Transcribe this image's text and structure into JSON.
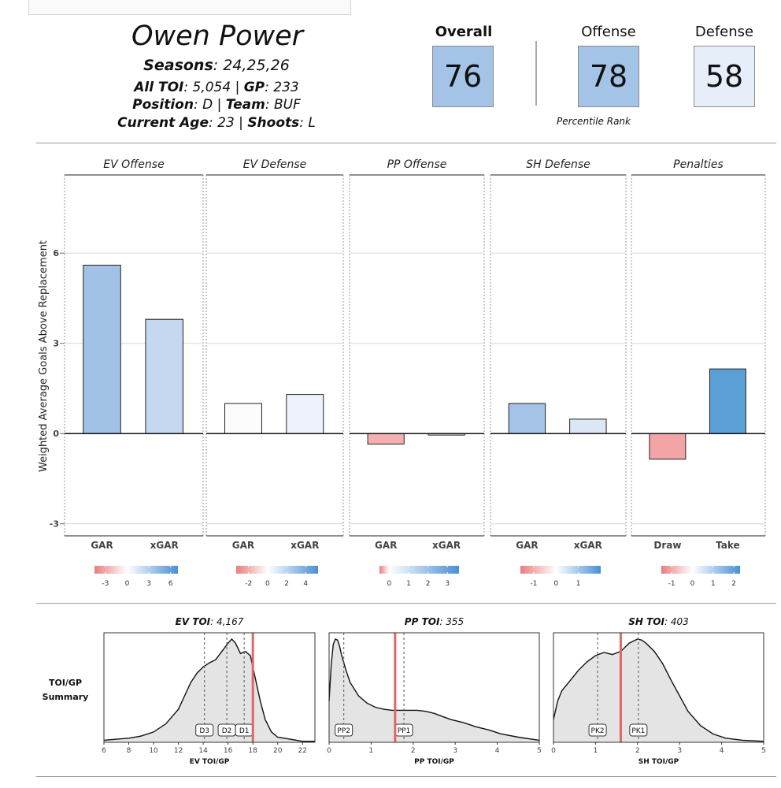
{
  "player": {
    "name": "Owen Power",
    "seasons_label": "Seasons",
    "seasons_value": ": 24,25,26",
    "toi_label": "All TOI",
    "toi_value": ": 5,054 | ",
    "gp_label": "GP",
    "gp_value": ": 233",
    "position_label": "Position",
    "position_value": ": D | ",
    "team_label": "Team",
    "team_value": ": BUF",
    "age_label": "Current Age",
    "age_value": ": 23 | ",
    "shoots_label": "Shoots",
    "shoots_value": ": L"
  },
  "ranks": {
    "overall_label": "Overall",
    "overall_value": "76",
    "offense_label": "Offense",
    "offense_value": "78",
    "defense_label": "Defense",
    "defense_value": "58",
    "caption": "Percentile Rank",
    "colors": {
      "overall": "#a3c4e6",
      "offense": "#a3c4e6",
      "defense": "#e6eefa"
    }
  },
  "toi_side_label": [
    "TOI/GP",
    "Summary"
  ],
  "chart_data": [
    {
      "type": "bar",
      "ylabel": "Weighted Average Goals Above Replacement",
      "ylim": [
        -3.4,
        8.6
      ],
      "yticks": [
        -3,
        0,
        3,
        6
      ],
      "panels": [
        {
          "title": "EV Offense",
          "categories": [
            "GAR",
            "xGAR"
          ],
          "values": [
            5.6,
            3.8
          ],
          "colors": [
            "#a1c1e6",
            "#c5d8f0"
          ],
          "legend_ticks": [
            -3,
            0,
            3,
            6
          ],
          "legend_range": [
            -4.5,
            7
          ]
        },
        {
          "title": "EV Defense",
          "categories": [
            "GAR",
            "xGAR"
          ],
          "values": [
            1.0,
            1.3
          ],
          "colors": [
            "#fcfcfd",
            "#eef3fb"
          ],
          "legend_ticks": [
            -2,
            0,
            2,
            4
          ],
          "legend_range": [
            -3.3,
            5.3
          ]
        },
        {
          "title": "PP Offense",
          "categories": [
            "GAR",
            "xGAR"
          ],
          "values": [
            -0.35,
            -0.05
          ],
          "colors": [
            "#f6b0b0",
            "#f8eeee"
          ],
          "legend_ticks": [
            0,
            1,
            2,
            3
          ],
          "legend_range": [
            -0.5,
            3.6
          ]
        },
        {
          "title": "SH Defense",
          "categories": [
            "GAR",
            "xGAR"
          ],
          "values": [
            1.0,
            0.48
          ],
          "colors": [
            "#a4c3e6",
            "#dce7f6"
          ],
          "legend_ticks": [
            -1,
            0,
            1
          ],
          "legend_range": [
            -1.6,
            2.0
          ]
        },
        {
          "title": "Penalties",
          "categories": [
            "Draw",
            "Take"
          ],
          "values": [
            -0.85,
            2.15
          ],
          "colors": [
            "#f3a5a5",
            "#5a9fd6"
          ],
          "legend_ticks": [
            -1,
            0,
            1,
            2
          ],
          "legend_range": [
            -1.5,
            2.3
          ]
        }
      ]
    },
    {
      "type": "area",
      "title_label": "EV TOI",
      "title_value": ": 4,167",
      "xlabel": "EV TOI/GP",
      "xlim": [
        6,
        23
      ],
      "xticks": [
        6,
        8,
        10,
        12,
        14,
        16,
        18,
        20,
        22
      ],
      "curve_x": [
        6,
        7,
        8,
        9,
        10,
        11,
        12,
        12.5,
        13,
        13.5,
        14,
        14.5,
        15,
        15.5,
        16,
        16.3,
        16.6,
        17,
        17.4,
        17.8,
        18.2,
        18.6,
        19,
        19.5,
        20,
        21,
        22,
        23
      ],
      "curve_y": [
        0.02,
        0.03,
        0.04,
        0.06,
        0.1,
        0.18,
        0.32,
        0.45,
        0.58,
        0.67,
        0.73,
        0.77,
        0.8,
        0.88,
        0.96,
        1.0,
        0.96,
        0.86,
        0.88,
        0.84,
        0.62,
        0.4,
        0.22,
        0.1,
        0.05,
        0.03,
        0.01,
        0.01
      ],
      "markers": [
        {
          "label": "D3",
          "x": 14.1
        },
        {
          "label": "D2",
          "x": 15.9
        },
        {
          "label": "D1",
          "x": 17.3
        }
      ],
      "player_value": 18.0
    },
    {
      "type": "area",
      "title_label": "PP TOI",
      "title_value": ": 355",
      "xlabel": "PP TOI/GP",
      "xlim": [
        0,
        5
      ],
      "xticks": [
        0,
        1,
        2,
        3,
        4,
        5
      ],
      "curve_x": [
        0,
        0.05,
        0.1,
        0.15,
        0.2,
        0.25,
        0.3,
        0.4,
        0.5,
        0.7,
        0.9,
        1.1,
        1.3,
        1.5,
        1.7,
        1.9,
        2.1,
        2.3,
        2.5,
        2.7,
        2.9,
        3.2,
        3.5,
        3.8,
        4.1,
        4.5,
        5
      ],
      "curve_y": [
        0.4,
        0.75,
        0.95,
        1.0,
        0.99,
        0.93,
        0.84,
        0.7,
        0.58,
        0.45,
        0.38,
        0.34,
        0.32,
        0.31,
        0.31,
        0.31,
        0.31,
        0.3,
        0.28,
        0.25,
        0.22,
        0.19,
        0.15,
        0.12,
        0.08,
        0.05,
        0.02
      ],
      "markers": [
        {
          "label": "PP2",
          "x": 0.35
        },
        {
          "label": "PP1",
          "x": 1.78
        }
      ],
      "player_value": 1.57
    },
    {
      "type": "area",
      "title_label": "SH TOI",
      "title_value": ": 403",
      "xlabel": "SH TOI/GP",
      "xlim": [
        0,
        5
      ],
      "xticks": [
        0,
        1,
        2,
        3,
        4,
        5
      ],
      "curve_x": [
        0,
        0.1,
        0.2,
        0.4,
        0.6,
        0.8,
        1.0,
        1.2,
        1.4,
        1.6,
        1.8,
        2.0,
        2.1,
        2.2,
        2.4,
        2.6,
        2.8,
        3.0,
        3.2,
        3.5,
        3.8,
        4.1,
        4.5,
        5
      ],
      "curve_y": [
        0.22,
        0.4,
        0.5,
        0.6,
        0.7,
        0.78,
        0.84,
        0.87,
        0.85,
        0.88,
        0.96,
        1.0,
        0.99,
        0.96,
        0.88,
        0.76,
        0.6,
        0.45,
        0.3,
        0.16,
        0.08,
        0.04,
        0.02,
        0.01
      ],
      "markers": [
        {
          "label": "PK2",
          "x": 1.05
        },
        {
          "label": "PK1",
          "x": 2.02
        }
      ],
      "player_value": 1.6
    }
  ]
}
